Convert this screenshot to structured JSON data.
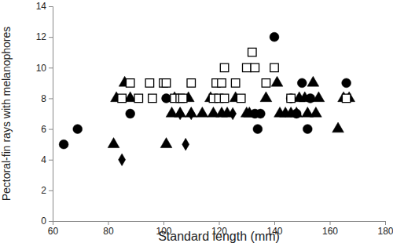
{
  "chart_data": {
    "type": "scatter",
    "x_label": "Standard length (mm)",
    "y_label": "Pectoral-fin rays with melanophores",
    "xlim": [
      60,
      180
    ],
    "xticks": [
      60,
      80,
      100,
      120,
      140,
      160,
      180
    ],
    "ylim": [
      0,
      14
    ],
    "yticks": [
      0,
      2,
      4,
      6,
      8,
      10,
      12,
      14
    ],
    "grid": false,
    "series": [
      {
        "marker": "circle",
        "color": "#000000",
        "x": [
          64,
          69,
          88,
          101,
          133,
          134,
          135,
          140,
          146,
          148,
          150,
          152,
          153,
          166
        ],
        "values": [
          5,
          6,
          7,
          8,
          7,
          6,
          7,
          12,
          8,
          7,
          9,
          6,
          8,
          9
        ]
      },
      {
        "marker": "triangle",
        "color": "#000000",
        "x": [
          82,
          83,
          86,
          88,
          101,
          103,
          104,
          106,
          109,
          110,
          114,
          117,
          118,
          121,
          123,
          126,
          130,
          131,
          137,
          141,
          142,
          144,
          146,
          148,
          149,
          151,
          152,
          154,
          155,
          156,
          163,
          165,
          167
        ],
        "values": [
          5,
          8,
          9,
          8,
          5,
          7,
          8,
          7,
          8,
          7,
          7,
          8,
          7,
          7,
          7,
          8,
          7,
          7,
          8,
          9,
          7,
          7,
          7,
          7,
          8,
          8,
          7,
          9,
          7,
          8,
          6,
          8,
          8
        ]
      },
      {
        "marker": "diamond",
        "color": "#000000",
        "x": [
          85,
          106,
          108,
          110,
          125
        ],
        "values": [
          4,
          7,
          5,
          7,
          7
        ]
      },
      {
        "marker": "square-open",
        "color": "#000000",
        "x": [
          85,
          88,
          91,
          95,
          96,
          100,
          101,
          104,
          106,
          107,
          110,
          118,
          119,
          120,
          121,
          122,
          122,
          126,
          128,
          130,
          132,
          133,
          137,
          140,
          146,
          166
        ],
        "values": [
          8,
          9,
          8,
          9,
          8,
          9,
          9,
          8,
          8,
          8,
          9,
          8,
          9,
          8,
          9,
          10,
          8,
          9,
          8,
          10,
          11,
          10,
          9,
          10,
          8,
          8
        ]
      }
    ]
  }
}
